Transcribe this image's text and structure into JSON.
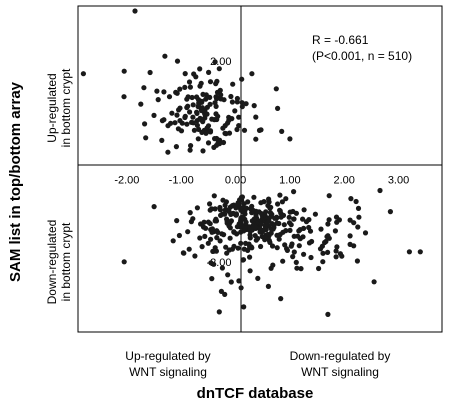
{
  "chart_data": {
    "type": "scatter",
    "xlabel": "dnTCF database",
    "ylabel": "SAM list in top/bottom array",
    "x_quadrant_labels": {
      "left": [
        "Up-regulated by",
        "WNT signaling"
      ],
      "right": [
        "Down-regulated by",
        "WNT signaling"
      ]
    },
    "y_quadrant_labels": {
      "upper": [
        "Up-regulated",
        "in bottom crypt"
      ],
      "lower": [
        "Down-regulated",
        "in bottom crypt"
      ]
    },
    "annotation": [
      "R = -0.661",
      "(P<0.001, n = 510)"
    ],
    "x_ticks": [
      "-2.00",
      "-1.00",
      "0.00",
      "1.00",
      "2.00",
      "3.00"
    ],
    "y_ticks": [
      "2.00",
      "-2.00"
    ],
    "xlim": [
      -2.9,
      3.8
    ],
    "ylim": [
      -3.4,
      3.1
    ],
    "grid": false,
    "legend": "none",
    "point_color": "#1a1a1a",
    "clusters": [
      {
        "cx": -0.55,
        "cy": 0.9,
        "sx": 0.45,
        "sy": 0.35,
        "n": 120
      },
      {
        "cx": -0.85,
        "cy": 1.3,
        "sx": 0.6,
        "sy": 0.45,
        "n": 35
      },
      {
        "cx": 0.25,
        "cy": -1.15,
        "sx": 0.4,
        "sy": 0.22,
        "n": 180
      },
      {
        "cx": 1.3,
        "cy": -1.45,
        "sx": 0.75,
        "sy": 0.4,
        "n": 90
      },
      {
        "cx": -0.35,
        "cy": -1.55,
        "sx": 0.4,
        "sy": 0.45,
        "n": 50
      },
      {
        "cx": 0.6,
        "cy": -2.2,
        "sx": 0.8,
        "sy": 0.35,
        "n": 15
      }
    ],
    "outliers": [
      {
        "x": -1.85,
        "y": 3.0
      },
      {
        "x": -2.8,
        "y": 1.75
      },
      {
        "x": -2.05,
        "y": 1.8
      },
      {
        "x": -1.3,
        "y": 2.1
      },
      {
        "x": 0.3,
        "y": 1.75
      },
      {
        "x": -0.3,
        "y": 1.85
      },
      {
        "x": 0.85,
        "y": 0.6
      },
      {
        "x": 1.0,
        "y": 0.45
      },
      {
        "x": 0.75,
        "y": 1.45
      },
      {
        "x": 1.85,
        "y": -1.9
      },
      {
        "x": 2.55,
        "y": -2.4
      },
      {
        "x": 3.2,
        "y": -1.8
      },
      {
        "x": 3.4,
        "y": -1.8
      },
      {
        "x": 2.85,
        "y": -1.0
      },
      {
        "x": -0.3,
        "y": -3.0
      },
      {
        "x": 1.7,
        "y": -3.05
      },
      {
        "x": -2.05,
        "y": -2.0
      },
      {
        "x": 0.15,
        "y": -2.9
      },
      {
        "x": -1.5,
        "y": -0.9
      },
      {
        "x": -0.2,
        "y": -2.65
      }
    ]
  }
}
